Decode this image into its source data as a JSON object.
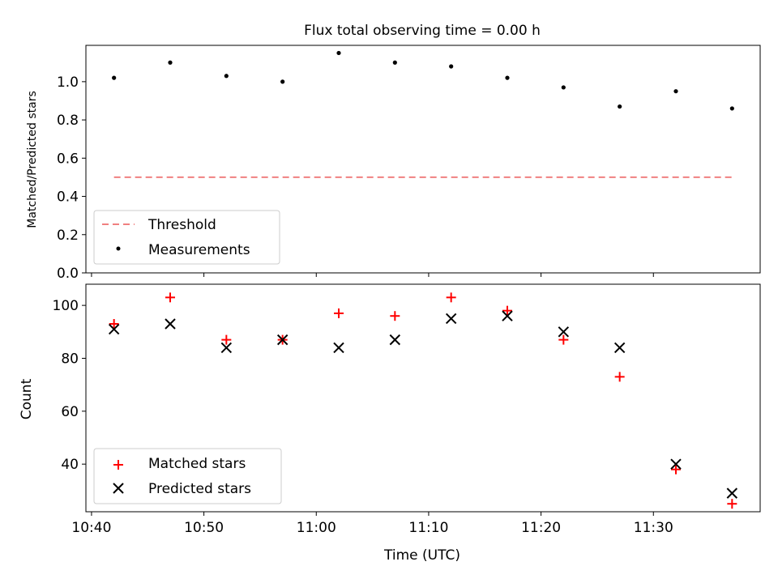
{
  "chart_data": [
    {
      "type": "scatter",
      "title": "Flux total observing time = 0.00 h",
      "xlabel": "",
      "ylabel": "Matched/Predicted stars",
      "ylim": [
        0,
        1.19
      ],
      "yticks": [
        "0.0",
        "0.2",
        "0.4",
        "0.6",
        "0.8",
        "1.0"
      ],
      "grid": false,
      "legend_position": "lower-left",
      "series": [
        {
          "name": "Threshold",
          "style": "dashed-line",
          "color": "#f08080",
          "x": [
            "10:42",
            "11:37"
          ],
          "values": [
            0.5,
            0.5
          ]
        },
        {
          "name": "Measurements",
          "style": "dot",
          "color": "#000000",
          "x": [
            "10:42",
            "10:47",
            "10:52",
            "10:57",
            "11:02",
            "11:07",
            "11:12",
            "11:17",
            "11:22",
            "11:27",
            "11:32",
            "11:37"
          ],
          "values": [
            1.02,
            1.1,
            1.03,
            1.0,
            1.15,
            1.1,
            1.08,
            1.02,
            0.97,
            0.87,
            0.95,
            0.86
          ]
        }
      ]
    },
    {
      "type": "scatter",
      "title": "",
      "xlabel": "Time (UTC)",
      "ylabel": "Count",
      "ylim": [
        22,
        108
      ],
      "yticks": [
        "40",
        "60",
        "80",
        "100"
      ],
      "xlim": [
        "10:39.5",
        "11:39.5"
      ],
      "xticks": [
        "10:40",
        "10:50",
        "11:00",
        "11:10",
        "11:20",
        "11:30"
      ],
      "grid": false,
      "legend_position": "lower-left",
      "series": [
        {
          "name": "Matched stars",
          "marker": "plus",
          "color": "#ff0000",
          "x": [
            "10:42",
            "10:47",
            "10:52",
            "10:57",
            "11:02",
            "11:07",
            "11:12",
            "11:17",
            "11:22",
            "11:27",
            "11:32",
            "11:37"
          ],
          "values": [
            93,
            103,
            87,
            87,
            97,
            96,
            103,
            98,
            87,
            73,
            38,
            25
          ]
        },
        {
          "name": "Predicted stars",
          "marker": "x",
          "color": "#000000",
          "x": [
            "10:42",
            "10:47",
            "10:52",
            "10:57",
            "11:02",
            "11:07",
            "11:12",
            "11:17",
            "11:22",
            "11:27",
            "11:32",
            "11:37"
          ],
          "values": [
            91,
            93,
            84,
            87,
            84,
            87,
            95,
            96,
            90,
            84,
            40,
            29
          ]
        }
      ]
    }
  ]
}
